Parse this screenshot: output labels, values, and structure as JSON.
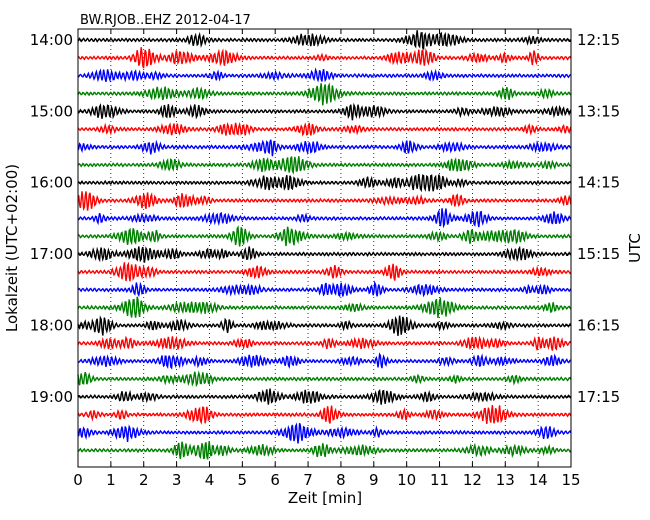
{
  "chart_data": {
    "type": "line",
    "title": "BW.RJOB..EHZ 2012-04-17",
    "xlabel": "Zeit  [min]",
    "ylabel_left": "Lokalzeit (UTC+02:00)",
    "ylabel_right": "UTC",
    "xlim": [
      0,
      15
    ],
    "x_ticks": [
      "0",
      "1",
      "2",
      "3",
      "4",
      "5",
      "6",
      "7",
      "8",
      "9",
      "10",
      "11",
      "12",
      "13",
      "14",
      "15"
    ],
    "left_ticks": [
      "14:00",
      "15:00",
      "16:00",
      "17:00",
      "18:00",
      "19:00"
    ],
    "right_ticks": [
      "12:15",
      "13:15",
      "14:15",
      "15:15",
      "16:15",
      "17:15"
    ],
    "grid": "vertical dotted",
    "trace_count": 24,
    "trace_interval_min": 15,
    "colors": [
      "#000000",
      "#ff0000",
      "#0000ff",
      "#008000"
    ]
  }
}
